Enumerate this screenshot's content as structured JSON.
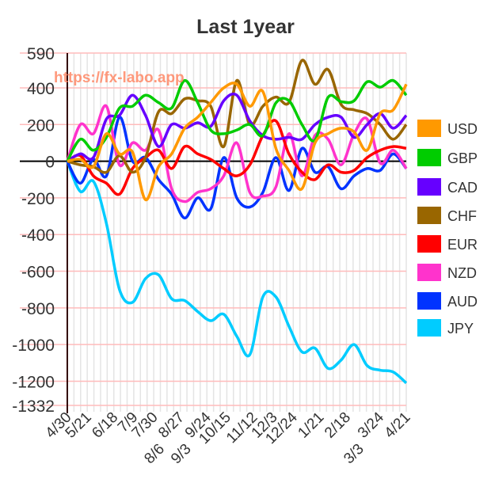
{
  "chart_data": {
    "type": "line",
    "title": "Last 1year",
    "watermark": "https://fx-labo.app",
    "xlabel": "",
    "ylabel": "",
    "ylim": [
      -1332,
      590
    ],
    "y_ticks": [
      590,
      400,
      200,
      0,
      -200,
      -400,
      -600,
      -800,
      -1000,
      -1200,
      -1332
    ],
    "x_range_weeks": [
      0,
      51
    ],
    "x_ticks": [
      {
        "label": "4/30",
        "week": 0
      },
      {
        "label": "5/21",
        "week": 3
      },
      {
        "label": "6/18",
        "week": 7
      },
      {
        "label": "7/9",
        "week": 10
      },
      {
        "label": "7/30",
        "week": 13
      },
      {
        "label": "8/6",
        "week": 14
      },
      {
        "label": "8/27",
        "week": 17
      },
      {
        "label": "9/3",
        "week": 18
      },
      {
        "label": "9/24",
        "week": 21
      },
      {
        "label": "10/15",
        "week": 24
      },
      {
        "label": "11/12",
        "week": 28
      },
      {
        "label": "12/3",
        "week": 31
      },
      {
        "label": "12/24",
        "week": 34
      },
      {
        "label": "1/21",
        "week": 38
      },
      {
        "label": "2/18",
        "week": 42
      },
      {
        "label": "3/3",
        "week": 44
      },
      {
        "label": "3/24",
        "week": 47
      },
      {
        "label": "4/21",
        "week": 51
      }
    ],
    "grid": true,
    "legend_position": "right",
    "series": [
      {
        "name": "USD",
        "color": "#ff9900",
        "values": [
          0,
          10,
          -30,
          150,
          40,
          50,
          -210,
          -30,
          40,
          180,
          240,
          320,
          400,
          420,
          300,
          380,
          70,
          -50,
          -150,
          100,
          150,
          180,
          160,
          60,
          260,
          280,
          420
        ]
      },
      {
        "name": "GBP",
        "color": "#00cc00",
        "values": [
          0,
          120,
          60,
          130,
          290,
          300,
          360,
          320,
          290,
          440,
          320,
          170,
          150,
          170,
          200,
          140,
          318,
          330,
          200,
          115,
          348,
          325,
          330,
          433,
          404,
          440,
          360
        ]
      },
      {
        "name": "CAD",
        "color": "#6600ff",
        "values": [
          0,
          40,
          20,
          230,
          250,
          360,
          250,
          80,
          200,
          180,
          210,
          190,
          330,
          360,
          220,
          140,
          120,
          130,
          120,
          200,
          240,
          240,
          130,
          200,
          260,
          180,
          250
        ]
      },
      {
        "name": "CHF",
        "color": "#996600",
        "values": [
          0,
          -20,
          -30,
          -60,
          30,
          -60,
          20,
          270,
          260,
          340,
          330,
          300,
          80,
          440,
          200,
          300,
          350,
          320,
          550,
          420,
          500,
          310,
          280,
          260,
          200,
          120,
          200
        ]
      },
      {
        "name": "EUR",
        "color": "#ff0000",
        "values": [
          0,
          30,
          -80,
          -120,
          -180,
          -40,
          20,
          60,
          -40,
          80,
          40,
          10,
          -40,
          -80,
          -20,
          140,
          220,
          40,
          -60,
          -100,
          -20,
          -60,
          -50,
          20,
          60,
          80,
          70
        ]
      },
      {
        "name": "NZD",
        "color": "#ff33cc",
        "values": [
          0,
          200,
          150,
          300,
          -20,
          100,
          60,
          170,
          -150,
          -220,
          -170,
          -150,
          -80,
          100,
          -170,
          -190,
          -140,
          150,
          -80,
          140,
          120,
          -20,
          150,
          230,
          -10,
          60,
          -40
        ]
      },
      {
        "name": "AUD",
        "color": "#0033ff",
        "values": [
          0,
          -120,
          10,
          -80,
          240,
          0,
          20,
          -100,
          -180,
          -310,
          -200,
          -260,
          20,
          -200,
          -250,
          -170,
          20,
          -160,
          70,
          -60,
          -30,
          -150,
          -80,
          -40,
          -50,
          40,
          -40
        ]
      },
      {
        "name": "JPY",
        "color": "#00ccff",
        "values": [
          0,
          -165,
          -110,
          -340,
          -700,
          -770,
          -640,
          -620,
          -750,
          -760,
          -820,
          -870,
          -835,
          -955,
          -1055,
          -740,
          -740,
          -900,
          -1040,
          -1020,
          -1130,
          -1085,
          -1000,
          -1115,
          -1140,
          -1150,
          -1210
        ]
      }
    ]
  }
}
